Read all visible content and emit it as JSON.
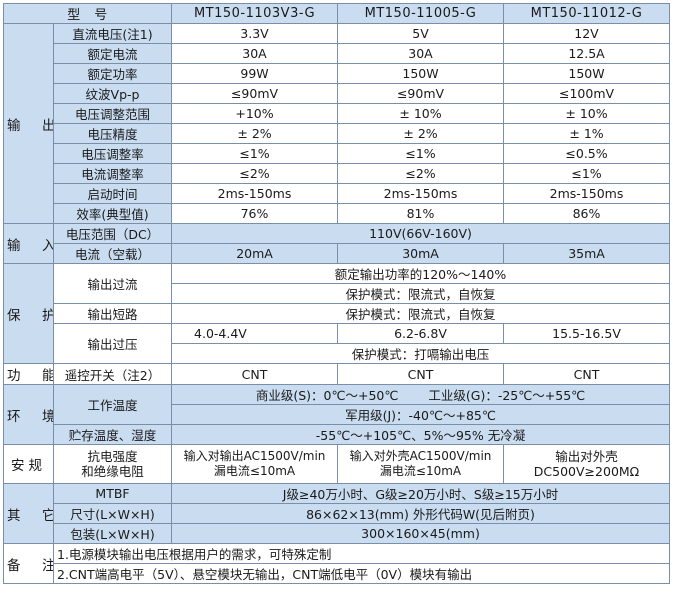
{
  "header": {
    "type_label": "型　号",
    "models": [
      "MT150-1103V3-G",
      "MT150-11005-G",
      "MT150-11012-G"
    ]
  },
  "output": {
    "category": "输　出",
    "rows": [
      {
        "label": "直流电压(注1)",
        "values": [
          "3.3V",
          "5V",
          "12V"
        ]
      },
      {
        "label": "额定电流",
        "values": [
          "30A",
          "30A",
          "12.5A"
        ]
      },
      {
        "label": "额定功率",
        "values": [
          "99W",
          "150W",
          "150W"
        ]
      },
      {
        "label": "纹波Vp-p",
        "values": [
          "≤90mV",
          "≤90mV",
          "≤100mV"
        ]
      },
      {
        "label": "电压调整范围",
        "values": [
          "+10%",
          "± 10%",
          "± 10%"
        ]
      },
      {
        "label": "电压精度",
        "values": [
          "± 2%",
          "± 2%",
          "± 1%"
        ]
      },
      {
        "label": "电压调整率",
        "values": [
          "≤1%",
          "≤1%",
          "≤0.5%"
        ]
      },
      {
        "label": "电流调整率",
        "values": [
          "≤2%",
          "≤2%",
          "≤1%"
        ]
      },
      {
        "label": "启动时间",
        "values": [
          "2ms-150ms",
          "2ms-150ms",
          "2ms-150ms"
        ]
      },
      {
        "label": "效率(典型值)",
        "values": [
          "76%",
          "81%",
          "86%"
        ]
      }
    ]
  },
  "input": {
    "category": "输　入",
    "voltage_label": "电压范围（DC）",
    "voltage_value": "110V(66V-160V)",
    "current_label": "电流（空载）",
    "current_values": [
      "20mA",
      "30mA",
      "35mA"
    ]
  },
  "protection": {
    "category": "保　护",
    "overcurrent_label": "输出过流",
    "overcurrent_line1": "额定输出功率的120%～140%",
    "overcurrent_line2": "保护模式：限流式，自恢复",
    "short_label": "输出短路",
    "short_value": "保护模式：限流式，自恢复",
    "overvoltage_label": "输出过压",
    "overvoltage_values": [
      "4.0-4.4V",
      "6.2-6.8V",
      "15.5-16.5V"
    ],
    "overvoltage_mode": "保护模式：打嗝输出电压"
  },
  "function": {
    "category": "功　能",
    "label": "遥控开关（注2）",
    "values": [
      "CNT",
      "CNT",
      "CNT"
    ]
  },
  "environment": {
    "category": "环　境",
    "temp_label": "工作温度",
    "temp_commercial": "商业级(S)：0℃～+50℃",
    "temp_industrial": "工业级(G)：-25℃～+55℃",
    "temp_military": "军用级(J)：-40℃～+85℃",
    "storage_label": "贮存温度、湿度",
    "storage_value": "-55℃～+105℃、5%～95% 无冷凝"
  },
  "safety": {
    "category": "安规",
    "label_line1": "抗电强度",
    "label_line2": "和绝缘电阻",
    "col1_line1": "输入对输出AC1500V/min",
    "col1_line2": "漏电流≤10mA",
    "col2_line1": "输入对外壳AC1500V/min",
    "col2_line2": "漏电流≤10mA",
    "col3_line1": "输出对外壳",
    "col3_line2": "DC500V≥200MΩ"
  },
  "other": {
    "category": "其　它",
    "mtbf_label": "MTBF",
    "mtbf_value": "J级≥40万小时、G级≥20万小时、S级≥15万小时",
    "size_label": "尺寸(L×W×H)",
    "size_value": "86×62×13(mm) 外形代码W(见后附页)",
    "pack_label": "包装(L×W×H)",
    "pack_value": "300×160×45(mm)"
  },
  "notes": {
    "category": "备　注",
    "note1": "1.电源模块输出电压根据用户的需求，可特殊定制",
    "note2": "2.CNT端高电平（5V）、悬空模块无输出，CNT端低电平（0V）模块有输出"
  },
  "colors": {
    "header_bg": "#c9dcf0",
    "border": "#7a8ea8"
  }
}
